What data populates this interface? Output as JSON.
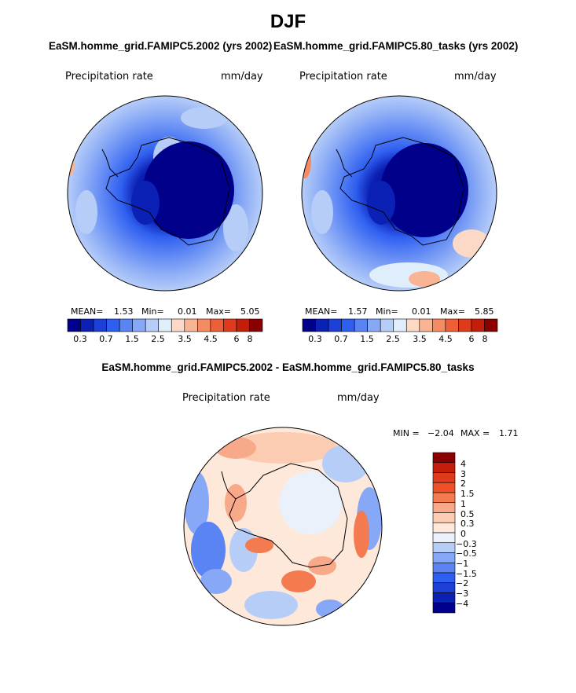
{
  "title": "DJF",
  "chart_data": [
    {
      "type": "heatmap",
      "projection": "south-polar-stereographic",
      "title": "EaSM.homme_grid.FAMIPC5.2002 (yrs 2002)",
      "variable": "Precipitation rate",
      "units": "mm/day",
      "stats": {
        "mean_label": "MEAN=",
        "mean": "1.53",
        "min_label": "Min=",
        "min": "0.01",
        "max_label": "Max=",
        "max": "5.05"
      },
      "colorbar": {
        "tick_labels": [
          "0.3",
          "0.7",
          "1.5",
          "2.5",
          "3.5",
          "4.5",
          "6",
          "8"
        ],
        "colors": [
          "#00008a",
          "#0b20b4",
          "#1c3fd8",
          "#2f5ff0",
          "#5a84f4",
          "#87a8f6",
          "#b6cdf8",
          "#e0edfb",
          "#fbd9c6",
          "#f9b494",
          "#f48b63",
          "#ee5e37",
          "#e03a1c",
          "#c31e0a",
          "#8a0000"
        ]
      }
    },
    {
      "type": "heatmap",
      "projection": "south-polar-stereographic",
      "title": "EaSM.homme_grid.FAMIPC5.80_tasks (yrs 2002)",
      "variable": "Precipitation rate",
      "units": "mm/day",
      "stats": {
        "mean_label": "MEAN=",
        "mean": "1.57",
        "min_label": "Min=",
        "min": "0.01",
        "max_label": "Max=",
        "max": "5.85"
      },
      "colorbar": {
        "tick_labels": [
          "0.3",
          "0.7",
          "1.5",
          "2.5",
          "3.5",
          "4.5",
          "6",
          "8"
        ],
        "colors": [
          "#00008a",
          "#0b20b4",
          "#1c3fd8",
          "#2f5ff0",
          "#5a84f4",
          "#87a8f6",
          "#b6cdf8",
          "#e0edfb",
          "#fbd9c6",
          "#f9b494",
          "#f48b63",
          "#ee5e37",
          "#e03a1c",
          "#c31e0a",
          "#8a0000"
        ]
      }
    },
    {
      "type": "heatmap",
      "projection": "south-polar-stereographic",
      "title": "EaSM.homme_grid.FAMIPC5.2002 - EaSM.homme_grid.FAMIPC5.80_tasks",
      "variable": "Precipitation rate",
      "units": "mm/day",
      "stats": {
        "min_label": "MIN =",
        "min": "−2.04",
        "max_label": "MAX =",
        "max": "1.71"
      },
      "colorbar": {
        "tick_labels": [
          "4",
          "3",
          "2",
          "1.5",
          "1",
          "0.5",
          "0.3",
          "0",
          "−0.3",
          "−0.5",
          "−1",
          "−1.5",
          "−2",
          "−3",
          "−4"
        ],
        "colors": [
          "#8a0000",
          "#c31e0a",
          "#e03a1c",
          "#f05028",
          "#f47a50",
          "#f8a98a",
          "#fbcbb2",
          "#fde8da",
          "#eaf1fb",
          "#b6cdf8",
          "#87a8f6",
          "#5a84f4",
          "#2f5ff0",
          "#1c3fd8",
          "#0b20b4",
          "#00008a"
        ]
      }
    }
  ]
}
